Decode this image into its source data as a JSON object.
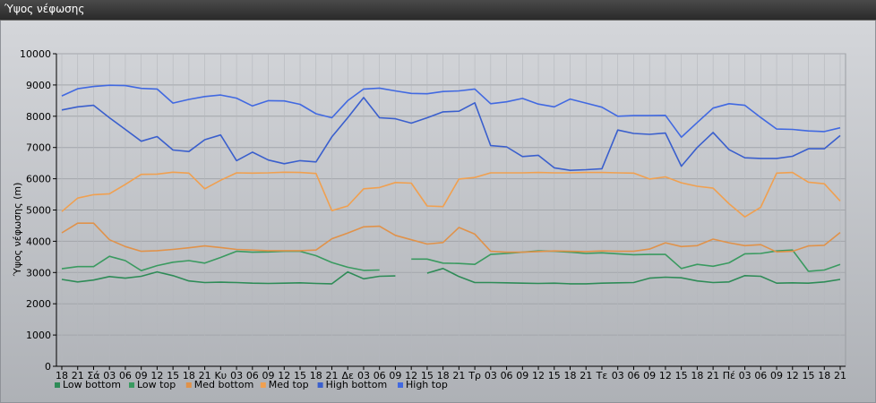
{
  "window": {
    "title": "Ύψος νέφωσης"
  },
  "chart_data": {
    "type": "line",
    "title": "",
    "xlabel": "",
    "ylabel": "Ύψος νέφωσης (m)",
    "ylim": [
      0,
      10000
    ],
    "yticks": [
      0,
      1000,
      2000,
      3000,
      4000,
      5000,
      6000,
      7000,
      8000,
      9000,
      10000
    ],
    "grid": true,
    "legend": "bottom-left",
    "x_labels": [
      "18",
      "21",
      "Σά",
      "03",
      "06",
      "09",
      "12",
      "15",
      "18",
      "21",
      "Κυ",
      "03",
      "06",
      "09",
      "12",
      "15",
      "18",
      "21",
      "Δε",
      "03",
      "06",
      "09",
      "12",
      "15",
      "18",
      "21",
      "Τρ",
      "03",
      "06",
      "09",
      "12",
      "15",
      "18",
      "21",
      "Τε",
      "03",
      "06",
      "09",
      "12",
      "15",
      "18",
      "21",
      "Πέ",
      "03",
      "06",
      "09",
      "12",
      "15",
      "18",
      "21"
    ],
    "series": [
      {
        "name": "Low bottom",
        "color": "#2e8b57",
        "values": [
          2780,
          2700,
          2760,
          2870,
          2820,
          2880,
          3020,
          2900,
          2730,
          2680,
          2690,
          2680,
          2660,
          2650,
          2660,
          2670,
          2650,
          2640,
          3020,
          2800,
          2880,
          2890,
          null,
          2980,
          3130,
          2870,
          2680,
          2680,
          2670,
          2660,
          2650,
          2660,
          2640,
          2640,
          2660,
          2670,
          2680,
          2820,
          2850,
          2830,
          2730,
          2680,
          2700,
          2900,
          2880,
          2660,
          2670,
          2660,
          2700,
          2780
        ]
      },
      {
        "name": "Low top",
        "color": "#3a9a60",
        "values": [
          3120,
          3190,
          3190,
          3520,
          3380,
          3060,
          3220,
          3330,
          3380,
          3300,
          3480,
          3680,
          3650,
          3660,
          3680,
          3680,
          3540,
          3320,
          3170,
          3070,
          3080,
          null,
          3430,
          3430,
          3300,
          3290,
          3260,
          3580,
          3610,
          3650,
          3690,
          3680,
          3650,
          3610,
          3630,
          3600,
          3570,
          3580,
          3580,
          3130,
          3260,
          3200,
          3310,
          3600,
          3610,
          3690,
          3720,
          3040,
          3080,
          3260
        ]
      },
      {
        "name": "Med bottom",
        "color": "#e0924a",
        "values": [
          4270,
          4580,
          4580,
          4050,
          3830,
          3680,
          3700,
          3740,
          3790,
          3850,
          3800,
          3740,
          3720,
          3700,
          3700,
          3700,
          3720,
          4080,
          4260,
          4460,
          4480,
          4190,
          4050,
          3910,
          3960,
          4440,
          4230,
          3680,
          3650,
          3650,
          3670,
          3690,
          3680,
          3670,
          3690,
          3680,
          3680,
          3750,
          3950,
          3830,
          3860,
          4070,
          3950,
          3860,
          3890,
          3660,
          3680,
          3850,
          3870,
          4280
        ]
      },
      {
        "name": "Med top",
        "color": "#f0a050",
        "values": [
          4950,
          5380,
          5490,
          5520,
          5820,
          6140,
          6150,
          6210,
          6180,
          5680,
          5950,
          6190,
          6180,
          6190,
          6210,
          6200,
          6170,
          4980,
          5130,
          5680,
          5720,
          5880,
          5860,
          5130,
          5110,
          5990,
          6040,
          6190,
          6190,
          6190,
          6200,
          6190,
          6190,
          6200,
          6200,
          6190,
          6180,
          5990,
          6060,
          5870,
          5760,
          5700,
          5200,
          4780,
          5090,
          6180,
          6200,
          5890,
          5840,
          5290
        ]
      },
      {
        "name": "High bottom",
        "color": "#3a5fcd",
        "values": [
          8200,
          8300,
          8350,
          7950,
          7580,
          7200,
          7350,
          6920,
          6870,
          7250,
          7400,
          6580,
          6850,
          6600,
          6480,
          6580,
          6540,
          7340,
          7950,
          8600,
          7950,
          7920,
          7780,
          7950,
          8140,
          8160,
          8430,
          7060,
          7020,
          6710,
          6750,
          6350,
          6270,
          6290,
          6320,
          7560,
          7450,
          7420,
          7460,
          6400,
          7000,
          7480,
          6930,
          6670,
          6650,
          6650,
          6720,
          6960,
          6960,
          7380
        ]
      },
      {
        "name": "High top",
        "color": "#4169e1",
        "values": [
          8650,
          8880,
          8950,
          8990,
          8980,
          8890,
          8870,
          8420,
          8540,
          8630,
          8680,
          8580,
          8330,
          8500,
          8490,
          8380,
          8080,
          7950,
          8500,
          8870,
          8900,
          8810,
          8730,
          8720,
          8790,
          8810,
          8870,
          8400,
          8460,
          8570,
          8390,
          8300,
          8550,
          8420,
          8290,
          8000,
          8020,
          8020,
          8030,
          7330,
          7800,
          8260,
          8400,
          8350,
          7960,
          7590,
          7580,
          7530,
          7510,
          7630
        ]
      }
    ]
  }
}
